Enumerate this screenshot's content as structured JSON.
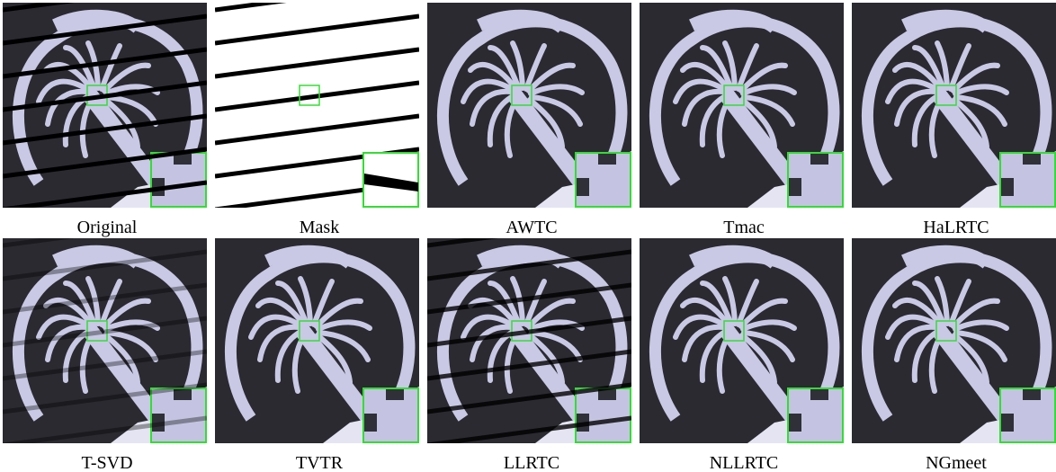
{
  "panels": [
    "Original",
    "Mask",
    "AWTC",
    "Tmac",
    "HaLRTC",
    "T-SVD",
    "TVTR",
    "LLRTC",
    "NLLRTC",
    "NGmeet"
  ]
}
